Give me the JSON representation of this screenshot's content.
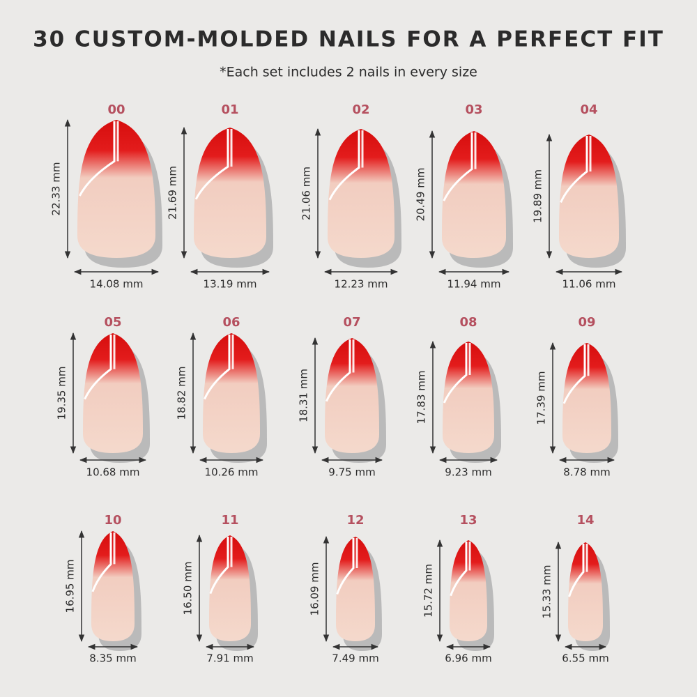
{
  "header": {
    "title": "30 CUSTOM-MOLDED NAILS FOR A PERFECT FIT",
    "subtitle": "*Each set includes 2 nails in every size"
  },
  "nails": [
    {
      "size": "00",
      "length": "22.33 mm",
      "width": "14.08 mm"
    },
    {
      "size": "01",
      "length": "21.69 mm",
      "width": "13.19 mm"
    },
    {
      "size": "02",
      "length": "21.06 mm",
      "width": "12.23 mm"
    },
    {
      "size": "03",
      "length": "20.49 mm",
      "width": "11.94 mm"
    },
    {
      "size": "04",
      "length": "19.89 mm",
      "width": "11.06 mm"
    },
    {
      "size": "05",
      "length": "19.35 mm",
      "width": "10.68 mm"
    },
    {
      "size": "06",
      "length": "18.82 mm",
      "width": "10.26 mm"
    },
    {
      "size": "07",
      "length": "18.31 mm",
      "width": "9.75 mm"
    },
    {
      "size": "08",
      "length": "17.83 mm",
      "width": "9.23 mm"
    },
    {
      "size": "09",
      "length": "17.39 mm",
      "width": "8.78 mm"
    },
    {
      "size": "10",
      "length": "16.95 mm",
      "width": "8.35 mm"
    },
    {
      "size": "11",
      "length": "16.50 mm",
      "width": "7.91 mm"
    },
    {
      "size": "12",
      "length": "16.09 mm",
      "width": "7.49 mm"
    },
    {
      "size": "13",
      "length": "15.72 mm",
      "width": "6.96 mm"
    },
    {
      "size": "14",
      "length": "15.33 mm",
      "width": "6.55 mm"
    }
  ]
}
